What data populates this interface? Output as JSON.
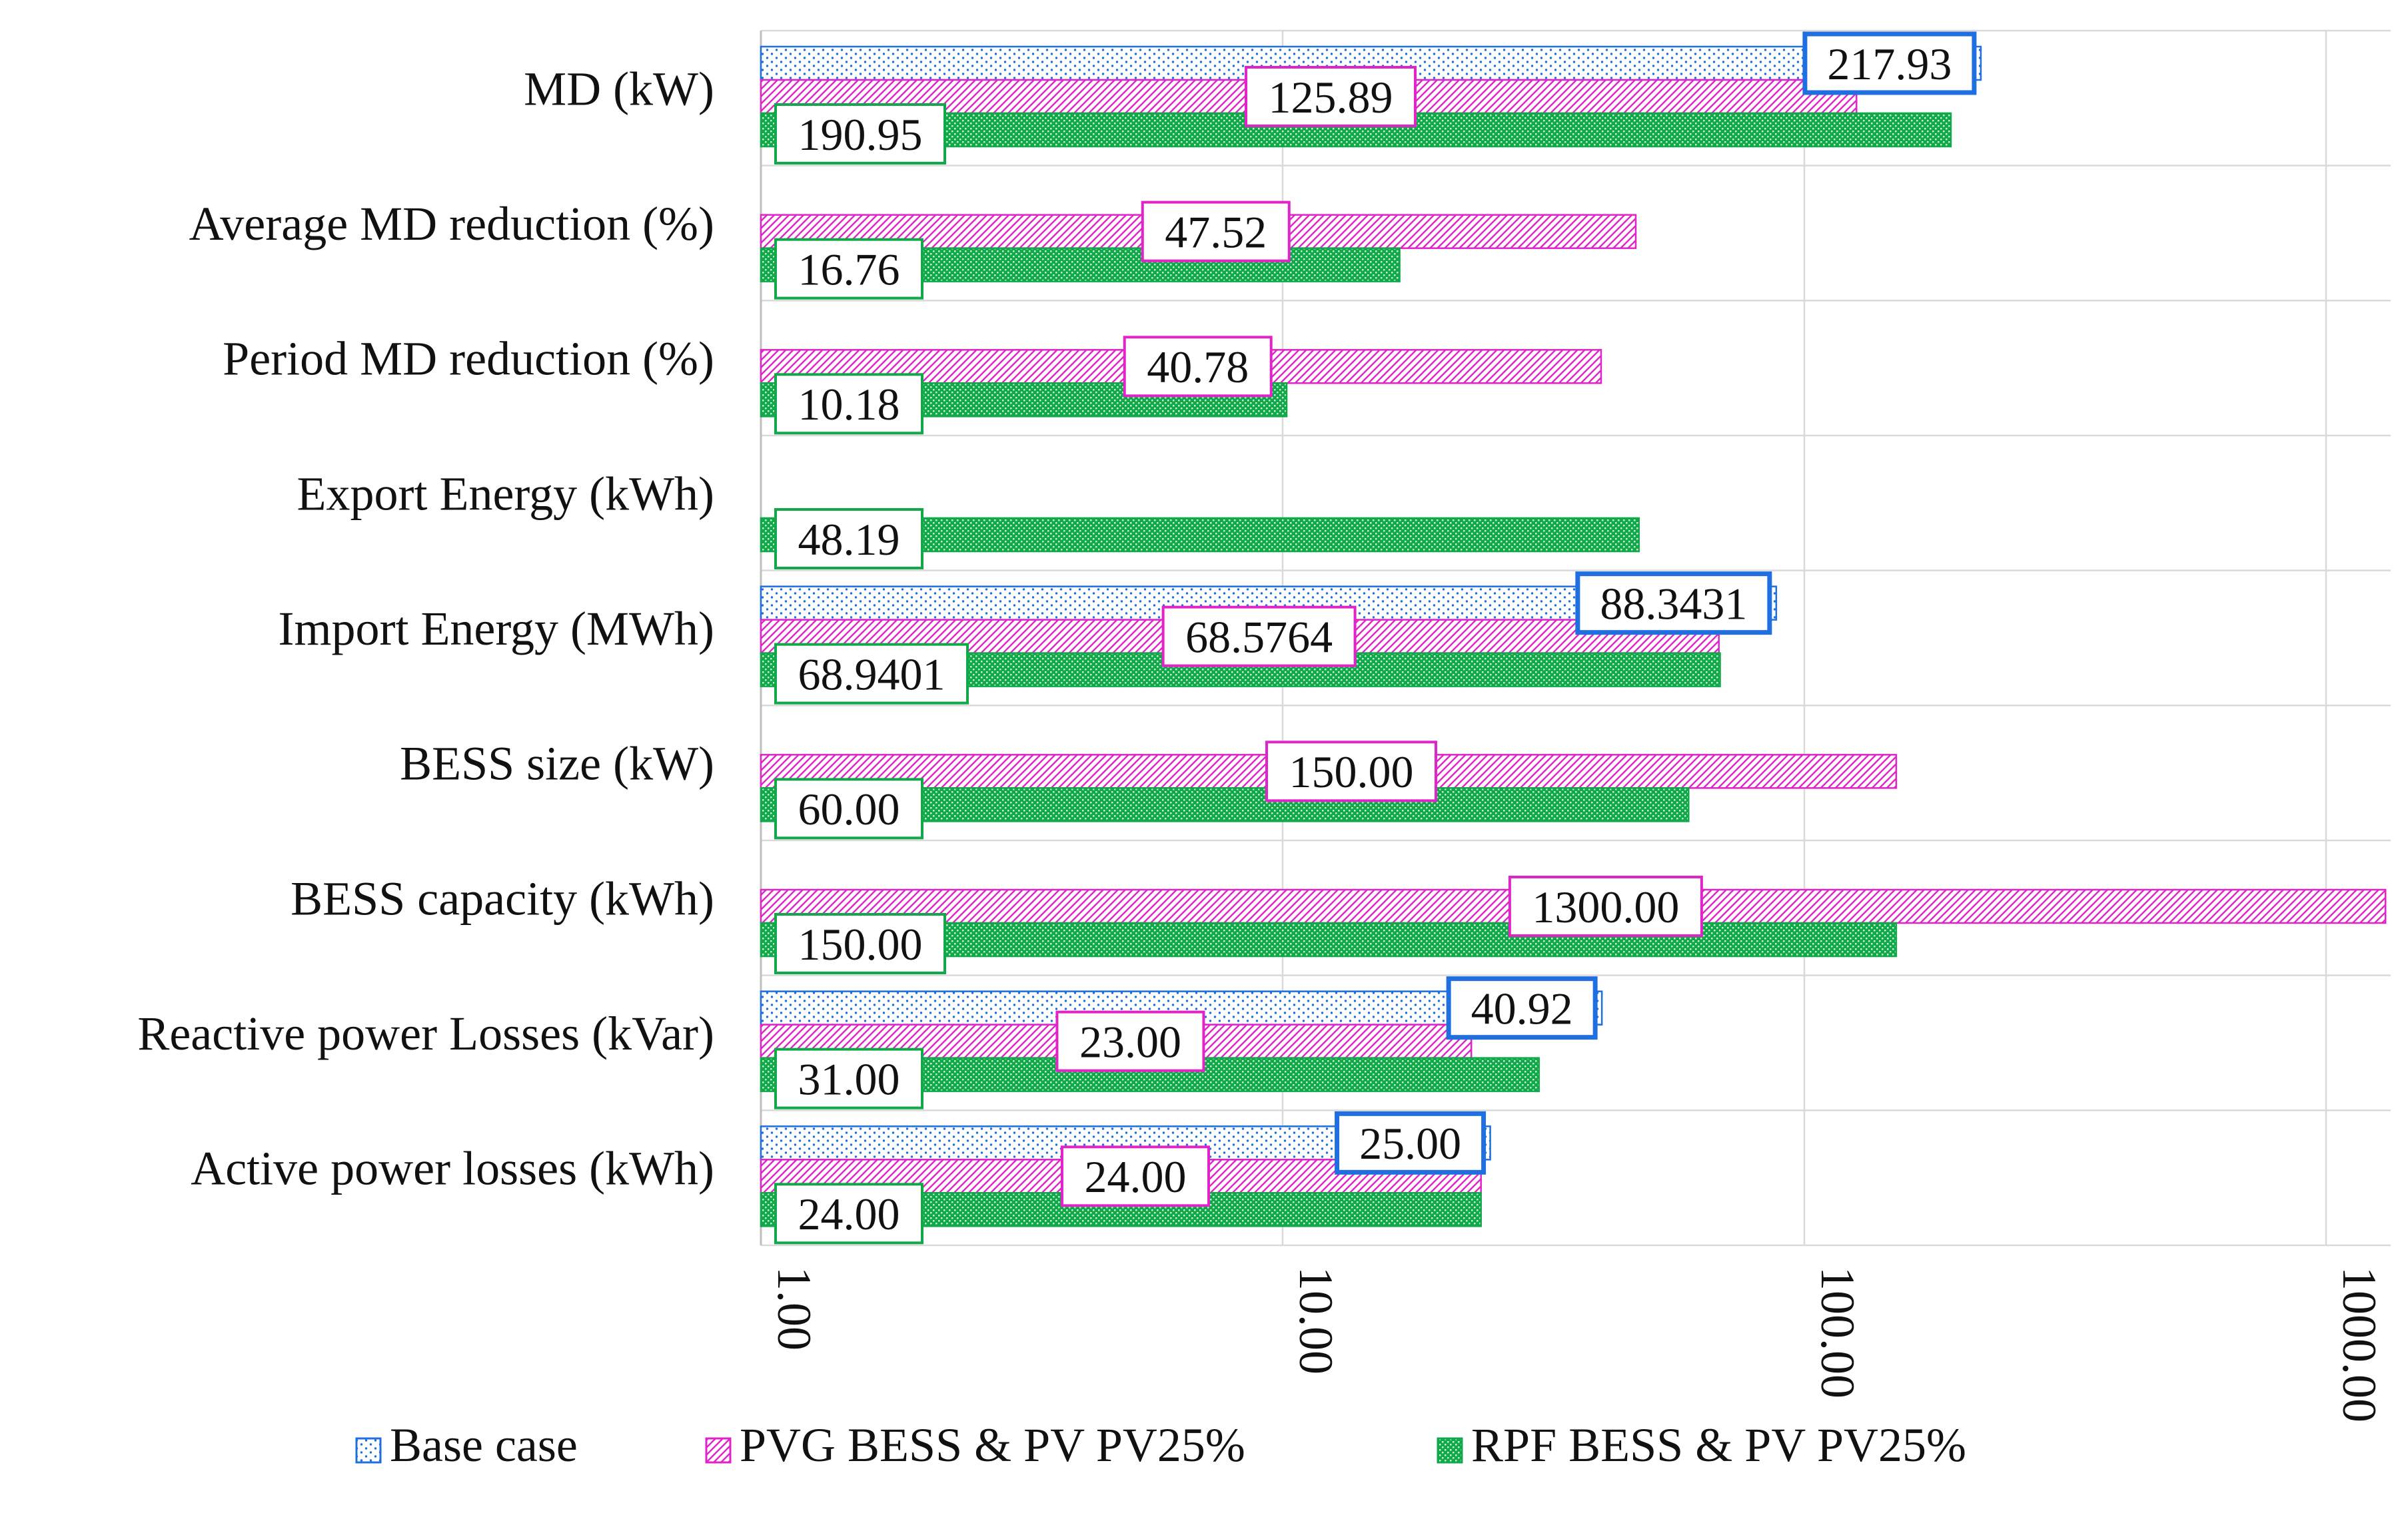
{
  "chart_data": {
    "type": "bar",
    "orientation": "horizontal",
    "x_scale": "log",
    "xlim": [
      1,
      1200
    ],
    "x_ticks": [
      1,
      10,
      100,
      1000
    ],
    "x_tick_labels": [
      "1.00",
      "10.00",
      "100.00",
      "1000.00"
    ],
    "grid": true,
    "legend_position": "bottom",
    "categories": [
      "MD (kW)",
      "Average MD reduction (%)",
      "Period MD reduction (%)",
      "Export Energy (kWh)",
      "Import Energy (MWh)",
      "BESS size (kW)",
      "BESS capacity (kWh)",
      "Reactive power Losses (kVar)",
      "Active power losses (kWh)"
    ],
    "series": [
      {
        "name": "Base case",
        "color": "#1f6fe0",
        "pattern": "dots",
        "values": [
          217.93,
          null,
          null,
          null,
          88.3431,
          null,
          null,
          40.92,
          25.0
        ],
        "labels": [
          "217.93",
          null,
          null,
          null,
          "88.3431",
          null,
          null,
          "40.92",
          "25.00"
        ]
      },
      {
        "name": "PVG BESS & PV PV25%",
        "color": "#e024c8",
        "pattern": "diagonal",
        "values": [
          125.89,
          47.52,
          40.78,
          null,
          68.5764,
          150.0,
          1300.0,
          23.0,
          24.0
        ],
        "labels": [
          "125.89",
          "47.52",
          "40.78",
          null,
          "68.5764",
          "150.00",
          "1300.00",
          "23.00",
          "24.00"
        ]
      },
      {
        "name": "RPF BESS & PV PV25%",
        "color": "#11a84a",
        "pattern": "checker",
        "values": [
          190.95,
          16.76,
          10.18,
          48.19,
          68.9401,
          60.0,
          150.0,
          31.0,
          24.0
        ],
        "labels": [
          "190.95",
          "16.76",
          "10.18",
          "48.19",
          "68.9401",
          "60.00",
          "150.00",
          "31.00",
          "24.00"
        ]
      }
    ]
  }
}
